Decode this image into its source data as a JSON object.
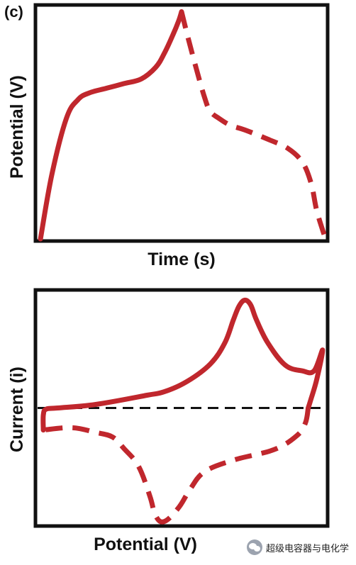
{
  "panel_label": "(c)",
  "watermark": "超级电容器与电化学",
  "colors": {
    "curve": "#c0272d",
    "frame": "#111111",
    "baseline": "#111111"
  },
  "chart_data": [
    {
      "type": "line",
      "xlabel": "Time (s)",
      "ylabel": "Potential (V)",
      "xlim": [
        0,
        1
      ],
      "ylim": [
        0,
        1
      ],
      "grid": false,
      "series": [
        {
          "style": "solid",
          "x": [
            0.01,
            0.05,
            0.1,
            0.14,
            0.18,
            0.24,
            0.3,
            0.36,
            0.41,
            0.44,
            0.47,
            0.49,
            0.5
          ],
          "y": [
            0.0,
            0.28,
            0.52,
            0.6,
            0.63,
            0.65,
            0.67,
            0.69,
            0.74,
            0.8,
            0.88,
            0.94,
            0.98
          ]
        },
        {
          "style": "dashed",
          "x": [
            0.5,
            0.52,
            0.55,
            0.58,
            0.6,
            0.63,
            0.67,
            0.72,
            0.8,
            0.87,
            0.92,
            0.95,
            0.97,
            1.0
          ],
          "y": [
            0.98,
            0.88,
            0.74,
            0.61,
            0.55,
            0.52,
            0.49,
            0.47,
            0.43,
            0.39,
            0.33,
            0.24,
            0.12,
            0.0
          ]
        }
      ]
    },
    {
      "type": "line",
      "xlabel": "Potential (V)",
      "ylabel": "Current (i)",
      "xlim": [
        0,
        1
      ],
      "ylim": [
        -1,
        1
      ],
      "grid": false,
      "baseline": 0,
      "series": [
        {
          "style": "solid",
          "x": [
            0.02,
            0.02,
            0.03,
            0.07,
            0.2,
            0.38,
            0.44,
            0.52,
            0.6,
            0.65,
            0.68,
            0.7,
            0.72,
            0.74,
            0.76,
            0.8,
            0.86,
            0.92,
            0.96,
            0.99,
            0.97,
            0.95,
            0.94
          ],
          "y": [
            -0.19,
            -0.06,
            -0.01,
            0.0,
            0.03,
            0.11,
            0.14,
            0.23,
            0.38,
            0.56,
            0.76,
            0.88,
            0.93,
            0.89,
            0.76,
            0.56,
            0.37,
            0.32,
            0.32,
            0.5,
            0.25,
            0.08,
            0.0
          ]
        },
        {
          "style": "dashed",
          "x": [
            0.94,
            0.93,
            0.9,
            0.82,
            0.68,
            0.58,
            0.53,
            0.49,
            0.44,
            0.41,
            0.39,
            0.35,
            0.3,
            0.26,
            0.2,
            0.12,
            0.02
          ],
          "y": [
            0.0,
            -0.13,
            -0.24,
            -0.36,
            -0.45,
            -0.55,
            -0.7,
            -0.86,
            -0.98,
            -0.93,
            -0.76,
            -0.5,
            -0.35,
            -0.25,
            -0.21,
            -0.17,
            -0.19
          ]
        }
      ]
    }
  ]
}
